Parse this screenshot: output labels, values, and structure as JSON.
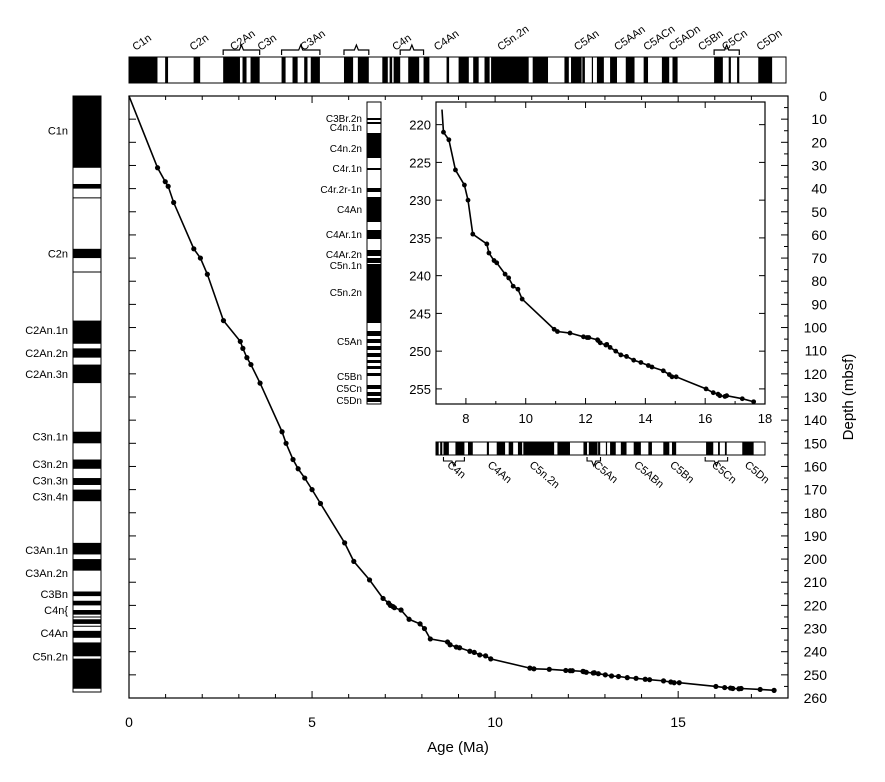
{
  "chart_data": [
    {
      "type": "line",
      "xlabel": "Age (Ma)",
      "ylabel": "Depth (mbsf)",
      "xlim": [
        0,
        18
      ],
      "ylim": [
        0,
        260
      ],
      "y_inverted": true,
      "x_ticks": [
        "0",
        "5",
        "10",
        "15"
      ],
      "y_ticks": [
        "0",
        "10",
        "20",
        "30",
        "40",
        "50",
        "60",
        "70",
        "80",
        "90",
        "100",
        "110",
        "120",
        "130",
        "140",
        "150",
        "160",
        "170",
        "180",
        "190",
        "200",
        "210",
        "220",
        "230",
        "240",
        "250",
        "260"
      ],
      "grid": false,
      "series": [
        {
          "x": [
            0.0,
            0.78,
            0.99,
            1.07,
            1.22,
            1.77,
            1.95,
            2.14,
            2.58,
            3.04,
            3.11,
            3.22,
            3.33,
            3.58,
            4.18,
            4.29,
            4.48,
            4.62,
            4.8,
            5.0,
            5.23,
            5.89,
            6.14,
            6.57,
            6.94,
            7.09,
            7.14,
            7.21,
            7.25,
            7.43,
            7.65,
            7.95,
            8.07,
            8.23,
            8.7,
            8.77,
            8.94,
            9.03,
            9.31,
            9.43,
            9.58,
            9.74,
            9.88,
            10.95,
            11.06,
            11.48,
            11.93,
            12.05,
            12.11,
            12.4,
            12.42,
            12.49,
            12.68,
            12.71,
            12.82,
            13.01,
            13.18,
            13.37,
            13.61,
            13.85,
            14.1,
            14.22,
            14.6,
            14.8,
            14.89,
            15.03,
            16.03,
            16.27,
            16.43,
            16.49,
            16.66,
            16.72,
            17.24,
            17.62
          ],
          "y": [
            0,
            31,
            37,
            39,
            46,
            66,
            70,
            77,
            97,
            106,
            109,
            113,
            116,
            124,
            145,
            150,
            157,
            161,
            165,
            170,
            176,
            193,
            201,
            209,
            217,
            219,
            220,
            220.5,
            221,
            222,
            226,
            228,
            230,
            234.5,
            235.8,
            237,
            238,
            238.3,
            239.8,
            240.3,
            241.4,
            241.8,
            243.1,
            247.1,
            247.4,
            247.6,
            248.1,
            248.2,
            248.2,
            248.5,
            248.6,
            248.9,
            249.2,
            249.1,
            249.5,
            250.0,
            250.5,
            250.7,
            251.2,
            251.5,
            251.9,
            252.1,
            252.6,
            253.1,
            253.4,
            253.4,
            255.0,
            255.5,
            255.7,
            255.9,
            256.0,
            255.9,
            256.3,
            256.7
          ]
        }
      ]
    },
    {
      "type": "line",
      "xlabel": "",
      "ylabel": "",
      "xlim": [
        7,
        18
      ],
      "ylim": [
        217,
        257
      ],
      "y_inverted": true,
      "x_ticks": [
        "8",
        "10",
        "12",
        "14",
        "16",
        "18"
      ],
      "y_ticks": [
        "220",
        "225",
        "230",
        "235",
        "240",
        "245",
        "250",
        "255"
      ],
      "grid": false,
      "series": [
        {
          "x": [
            7.2,
            7.25,
            7.43,
            7.65,
            7.95,
            8.07,
            8.23,
            8.7,
            8.77,
            8.94,
            9.03,
            9.31,
            9.43,
            9.58,
            9.74,
            9.88,
            10.95,
            11.06,
            11.48,
            11.93,
            12.05,
            12.11,
            12.4,
            12.42,
            12.49,
            12.68,
            12.71,
            12.82,
            13.01,
            13.18,
            13.37,
            13.61,
            13.85,
            14.1,
            14.22,
            14.6,
            14.8,
            14.89,
            15.03,
            16.03,
            16.27,
            16.43,
            16.49,
            16.66,
            16.72,
            17.24,
            17.62
          ],
          "y": [
            218,
            221,
            222,
            226,
            228,
            230,
            234.5,
            235.8,
            237,
            238,
            238.3,
            239.8,
            240.3,
            241.4,
            241.8,
            243.1,
            247.1,
            247.4,
            247.6,
            248.1,
            248.2,
            248.2,
            248.5,
            248.6,
            248.9,
            249.2,
            249.1,
            249.5,
            250.0,
            250.5,
            250.7,
            251.2,
            251.5,
            251.9,
            252.1,
            252.6,
            253.1,
            253.4,
            253.4,
            255.0,
            255.5,
            255.7,
            255.9,
            256.0,
            255.9,
            256.3,
            256.7
          ]
        }
      ]
    }
  ],
  "top_gpts": {
    "labels": [
      "C1n",
      "C2n",
      "C2An",
      "C3n",
      "C3An",
      "C4n",
      "C4An",
      "C5n.2n",
      "C5An",
      "C5AAn",
      "C5ACn",
      "C5ADn",
      "C5Bn",
      "C5Cn",
      "C5Dn"
    ],
    "normal_intervals_ma": [
      [
        0,
        0.78
      ],
      [
        0.99,
        1.07
      ],
      [
        1.77,
        1.95
      ],
      [
        2.58,
        3.04
      ],
      [
        3.11,
        3.22
      ],
      [
        3.33,
        3.58
      ],
      [
        4.18,
        4.29
      ],
      [
        4.48,
        4.62
      ],
      [
        4.8,
        4.89
      ],
      [
        4.98,
        5.23
      ],
      [
        5.89,
        6.14
      ],
      [
        6.27,
        6.57
      ],
      [
        6.94,
        7.09
      ],
      [
        7.14,
        7.21
      ],
      [
        7.25,
        7.43
      ],
      [
        7.65,
        7.95
      ],
      [
        8.07,
        8.23
      ],
      [
        8.7,
        8.77
      ],
      [
        9.03,
        9.31
      ],
      [
        9.43,
        9.58
      ],
      [
        9.74,
        9.88
      ],
      [
        9.92,
        10.95
      ],
      [
        11.06,
        11.48
      ],
      [
        11.93,
        12.05
      ],
      [
        12.11,
        12.4
      ],
      [
        12.42,
        12.49
      ],
      [
        12.68,
        12.71
      ],
      [
        12.82,
        13.01
      ],
      [
        13.18,
        13.37
      ],
      [
        13.61,
        13.85
      ],
      [
        14.1,
        14.22
      ],
      [
        14.6,
        14.8
      ],
      [
        14.89,
        15.03
      ],
      [
        16.03,
        16.27
      ],
      [
        16.43,
        16.49
      ],
      [
        16.66,
        16.72
      ],
      [
        17.24,
        17.62
      ]
    ]
  },
  "inset_gpts": {
    "labels": [
      "C4n",
      "C4An",
      "C5n.2n",
      "C5An",
      "C5ABn",
      "C5Bn",
      "C5Cn",
      "C5Dn"
    ]
  },
  "left_column": {
    "labels": [
      "C1n",
      "C2n",
      "C2An.1n",
      "C2An.2n",
      "C2An.3n",
      "C3n.1n",
      "C3n.2n",
      "C3n.3n",
      "C3n.4n",
      "C3An.1n",
      "C3An.2n",
      "C3Bn",
      "C4n{",
      "C4An",
      "C5n.2n"
    ],
    "normal_intervals_mbsf": [
      [
        0,
        31
      ],
      [
        38,
        40
      ],
      [
        66,
        70
      ],
      [
        97,
        107
      ],
      [
        109,
        113
      ],
      [
        116,
        124
      ],
      [
        145,
        150
      ],
      [
        157,
        161
      ],
      [
        165,
        168
      ],
      [
        170,
        175
      ],
      [
        193,
        198
      ],
      [
        200,
        205
      ],
      [
        214,
        216
      ],
      [
        218,
        220
      ],
      [
        222,
        224
      ],
      [
        226,
        228
      ],
      [
        231,
        234
      ],
      [
        236,
        242
      ],
      [
        243,
        256
      ]
    ]
  },
  "inset_column": {
    "labels": [
      "C3Br.2n",
      "C4n.1n",
      "C4n.2n",
      "C4r.1n",
      "C4r.2r-1n",
      "C4An",
      "C4Ar.1n",
      "C4Ar.2n",
      "C5n.1n",
      "C5n.2n",
      "C5An",
      "C5Bn",
      "C5Cn",
      "C5Dn"
    ]
  }
}
